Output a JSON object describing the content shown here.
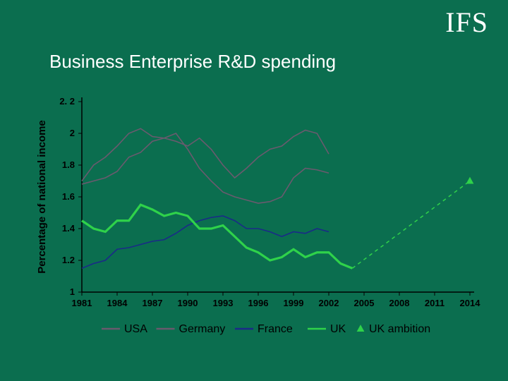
{
  "logo": {
    "text": "IFS"
  },
  "title": "Business Enterprise R&D spending",
  "chart": {
    "type": "line",
    "background_color": "#0b6e4f",
    "y_axis": {
      "title": "Percentage of national income",
      "min": 1.0,
      "max": 2.2,
      "tick_step": 0.2,
      "ticks": [
        "1",
        "1.2",
        "1.4",
        "1.6",
        "1.8",
        "2",
        "2. 2"
      ],
      "label_fontsize": 13,
      "title_fontsize": 15
    },
    "x_axis": {
      "min": 1981,
      "max": 2014,
      "tick_step": 3,
      "ticks": [
        "1981",
        "1984",
        "1987",
        "1990",
        "1993",
        "1996",
        "1999",
        "2002",
        "2005",
        "2008",
        "2011",
        "2014"
      ],
      "label_fontsize": 13
    },
    "series": [
      {
        "name": "USA",
        "color": "#6a5a6e",
        "line_width": 1.6,
        "data": [
          [
            1981,
            1.7
          ],
          [
            1982,
            1.8
          ],
          [
            1983,
            1.85
          ],
          [
            1984,
            1.92
          ],
          [
            1985,
            2.0
          ],
          [
            1986,
            2.03
          ],
          [
            1987,
            1.98
          ],
          [
            1988,
            1.97
          ],
          [
            1989,
            1.95
          ],
          [
            1990,
            1.92
          ],
          [
            1991,
            1.97
          ],
          [
            1992,
            1.9
          ],
          [
            1993,
            1.8
          ],
          [
            1994,
            1.72
          ],
          [
            1995,
            1.78
          ],
          [
            1996,
            1.85
          ],
          [
            1997,
            1.9
          ],
          [
            1998,
            1.92
          ],
          [
            1999,
            1.98
          ],
          [
            2000,
            2.02
          ],
          [
            2001,
            2.0
          ],
          [
            2002,
            1.87
          ]
        ]
      },
      {
        "name": "Germany",
        "color": "#6a5a6e",
        "line_width": 1.6,
        "data": [
          [
            1981,
            1.68
          ],
          [
            1982,
            1.7
          ],
          [
            1983,
            1.72
          ],
          [
            1984,
            1.76
          ],
          [
            1985,
            1.85
          ],
          [
            1986,
            1.88
          ],
          [
            1987,
            1.95
          ],
          [
            1988,
            1.97
          ],
          [
            1989,
            2.0
          ],
          [
            1990,
            1.9
          ],
          [
            1991,
            1.78
          ],
          [
            1992,
            1.7
          ],
          [
            1993,
            1.63
          ],
          [
            1994,
            1.6
          ],
          [
            1995,
            1.58
          ],
          [
            1996,
            1.56
          ],
          [
            1997,
            1.57
          ],
          [
            1998,
            1.6
          ],
          [
            1999,
            1.72
          ],
          [
            2000,
            1.78
          ],
          [
            2001,
            1.77
          ],
          [
            2002,
            1.75
          ]
        ]
      },
      {
        "name": "France",
        "color": "#1a2a88",
        "line_width": 1.6,
        "data": [
          [
            1981,
            1.15
          ],
          [
            1982,
            1.18
          ],
          [
            1983,
            1.2
          ],
          [
            1984,
            1.27
          ],
          [
            1985,
            1.28
          ],
          [
            1986,
            1.3
          ],
          [
            1987,
            1.32
          ],
          [
            1988,
            1.33
          ],
          [
            1989,
            1.37
          ],
          [
            1990,
            1.42
          ],
          [
            1991,
            1.45
          ],
          [
            1992,
            1.47
          ],
          [
            1993,
            1.48
          ],
          [
            1994,
            1.45
          ],
          [
            1995,
            1.4
          ],
          [
            1996,
            1.4
          ],
          [
            1997,
            1.38
          ],
          [
            1998,
            1.35
          ],
          [
            1999,
            1.38
          ],
          [
            2000,
            1.37
          ],
          [
            2001,
            1.4
          ],
          [
            2002,
            1.38
          ]
        ]
      },
      {
        "name": "UK",
        "color": "#2fd24a",
        "line_width": 3.2,
        "data": [
          [
            1981,
            1.45
          ],
          [
            1982,
            1.4
          ],
          [
            1983,
            1.38
          ],
          [
            1984,
            1.45
          ],
          [
            1985,
            1.45
          ],
          [
            1986,
            1.55
          ],
          [
            1987,
            1.52
          ],
          [
            1988,
            1.48
          ],
          [
            1989,
            1.5
          ],
          [
            1990,
            1.48
          ],
          [
            1991,
            1.4
          ],
          [
            1992,
            1.4
          ],
          [
            1993,
            1.42
          ],
          [
            1994,
            1.35
          ],
          [
            1995,
            1.28
          ],
          [
            1996,
            1.25
          ],
          [
            1997,
            1.2
          ],
          [
            1998,
            1.22
          ],
          [
            1999,
            1.27
          ],
          [
            2000,
            1.22
          ],
          [
            2001,
            1.25
          ],
          [
            2002,
            1.25
          ],
          [
            2003,
            1.18
          ],
          [
            2004,
            1.15
          ]
        ]
      }
    ],
    "projection": {
      "name": "UK ambition",
      "color": "#2fd24a",
      "marker": "triangle",
      "line_dash": "5 5",
      "line_width": 1.5,
      "from": [
        2004,
        1.15
      ],
      "to": [
        2014,
        1.7
      ]
    },
    "legend": {
      "items": [
        {
          "label": "USA",
          "type": "line",
          "color": "#6a5a6e"
        },
        {
          "label": "Germany",
          "type": "line",
          "color": "#6a5a6e"
        },
        {
          "label": "France",
          "type": "line",
          "color": "#1a2a88"
        },
        {
          "label": "UK",
          "type": "line",
          "color": "#2fd24a",
          "bold_line": true
        },
        {
          "label": "UK ambition",
          "type": "marker",
          "color": "#2fd24a",
          "marker": "triangle"
        }
      ]
    }
  }
}
